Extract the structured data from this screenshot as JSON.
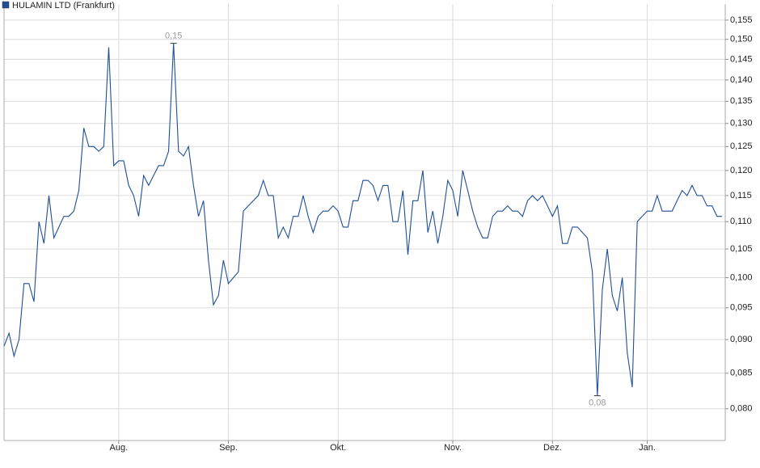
{
  "chart_data": {
    "type": "line",
    "log_scale": true,
    "grid": true,
    "legend": "top-left",
    "annotation_max": "0,15",
    "annotation_min": "0,08",
    "categories": [
      null,
      null,
      null,
      null,
      null,
      null,
      null,
      null,
      null,
      null,
      null,
      null,
      null,
      null,
      null,
      null,
      null,
      null,
      null,
      null,
      null,
      null,
      null,
      "Aug.",
      null,
      null,
      null,
      null,
      null,
      null,
      null,
      null,
      null,
      null,
      null,
      null,
      null,
      null,
      null,
      null,
      null,
      null,
      null,
      null,
      null,
      "Sep.",
      null,
      null,
      null,
      null,
      null,
      null,
      null,
      null,
      null,
      null,
      null,
      null,
      null,
      null,
      null,
      null,
      null,
      null,
      null,
      null,
      null,
      "Okt.",
      null,
      null,
      null,
      null,
      null,
      null,
      null,
      null,
      null,
      null,
      null,
      null,
      null,
      null,
      null,
      null,
      null,
      null,
      null,
      null,
      null,
      null,
      "Nov.",
      null,
      null,
      null,
      null,
      null,
      null,
      null,
      null,
      null,
      null,
      null,
      null,
      null,
      null,
      null,
      null,
      null,
      null,
      null,
      "Dez.",
      null,
      null,
      null,
      null,
      null,
      null,
      null,
      null,
      null,
      null,
      null,
      null,
      null,
      null,
      null,
      null,
      null,
      null,
      "Jan.",
      null,
      null,
      null,
      null,
      null,
      null,
      null,
      null,
      null,
      null,
      null,
      null,
      null,
      null,
      null
    ],
    "series": [
      {
        "name": "HULAMIN LTD (Frankfurt)",
        "color": "#1f4f96",
        "values": [
          0.089,
          0.091,
          0.0875,
          0.09,
          0.099,
          0.099,
          0.096,
          0.11,
          0.106,
          0.115,
          0.107,
          0.109,
          0.111,
          0.111,
          0.112,
          0.116,
          0.129,
          0.125,
          0.125,
          0.124,
          0.125,
          0.148,
          0.121,
          0.122,
          0.122,
          0.117,
          0.115,
          0.111,
          0.119,
          0.117,
          0.119,
          0.121,
          0.121,
          0.124,
          0.149,
          0.124,
          0.123,
          0.125,
          0.117,
          0.111,
          0.114,
          0.103,
          0.0955,
          0.097,
          0.103,
          0.099,
          0.1,
          0.101,
          0.112,
          0.113,
          0.114,
          0.115,
          0.118,
          0.115,
          0.115,
          0.107,
          0.109,
          0.107,
          0.111,
          0.111,
          0.115,
          0.111,
          0.108,
          0.111,
          0.112,
          0.112,
          0.113,
          0.112,
          0.109,
          0.109,
          0.114,
          0.114,
          0.118,
          0.118,
          0.117,
          0.114,
          0.117,
          0.117,
          0.11,
          0.11,
          0.116,
          0.104,
          0.114,
          0.114,
          0.12,
          0.108,
          0.112,
          0.106,
          0.111,
          0.118,
          0.116,
          0.111,
          0.12,
          0.116,
          0.112,
          0.109,
          0.107,
          0.107,
          0.111,
          0.112,
          0.112,
          0.113,
          0.112,
          0.112,
          0.111,
          0.114,
          0.115,
          0.114,
          0.115,
          0.113,
          0.111,
          0.113,
          0.106,
          0.106,
          0.109,
          0.109,
          0.108,
          0.107,
          0.101,
          0.0818,
          0.098,
          0.105,
          0.097,
          0.0945,
          0.1,
          0.088,
          0.083,
          0.11,
          0.111,
          0.112,
          0.112,
          0.115,
          0.112,
          0.112,
          0.112,
          0.114,
          0.116,
          0.115,
          0.117,
          0.115,
          0.115,
          0.113,
          0.113,
          0.111,
          0.111
        ]
      }
    ],
    "ylim": [
      0.0758,
      0.1593
    ],
    "yticks": [
      {
        "value": 0.08,
        "label": "0,080"
      },
      {
        "value": 0.085,
        "label": "0,085"
      },
      {
        "value": 0.09,
        "label": "0,090"
      },
      {
        "value": 0.095,
        "label": "0,095"
      },
      {
        "value": 0.1,
        "label": "0,100"
      },
      {
        "value": 0.105,
        "label": "0,105"
      },
      {
        "value": 0.11,
        "label": "0,110"
      },
      {
        "value": 0.115,
        "label": "0,115"
      },
      {
        "value": 0.12,
        "label": "0,120"
      },
      {
        "value": 0.125,
        "label": "0,125"
      },
      {
        "value": 0.13,
        "label": "0,130"
      },
      {
        "value": 0.135,
        "label": "0,135"
      },
      {
        "value": 0.14,
        "label": "0,140"
      },
      {
        "value": 0.145,
        "label": "0,145"
      },
      {
        "value": 0.15,
        "label": "0,150"
      },
      {
        "value": 0.155,
        "label": "0,155"
      }
    ]
  }
}
